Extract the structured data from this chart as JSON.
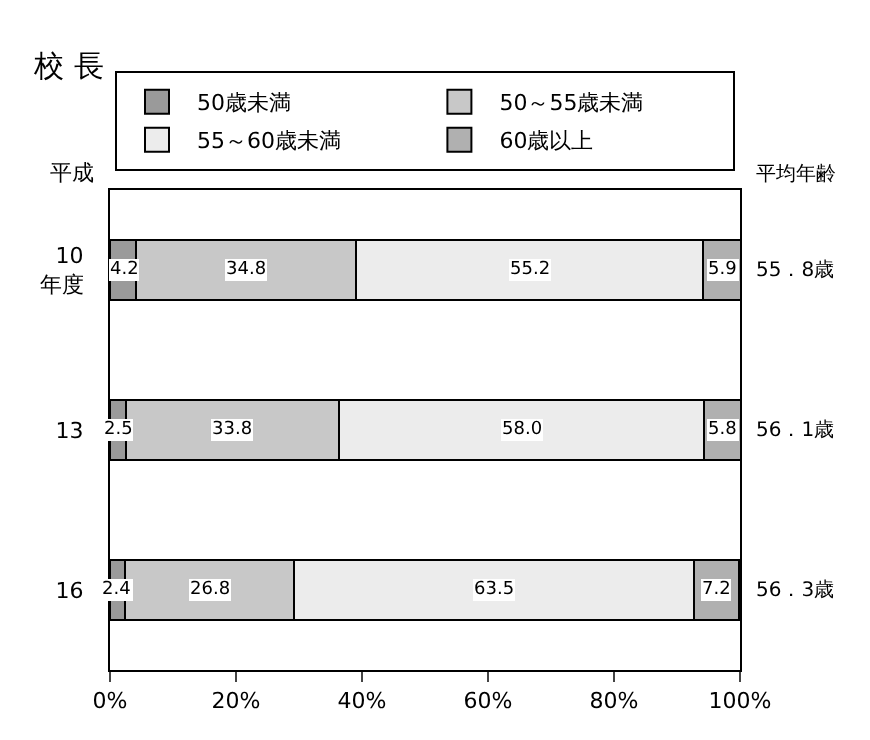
{
  "chart_data": {
    "type": "bar",
    "orientation": "horizontal",
    "stacked": true,
    "title": "校 長",
    "ylabel": "平成",
    "categories": [
      "10\n年度",
      "13",
      "16"
    ],
    "series": [
      {
        "name": "50歳未満",
        "color": "#9a9a9a",
        "values": [
          4.2,
          2.5,
          2.4
        ],
        "value_labels": [
          "4.2",
          "2.5",
          "2.4"
        ]
      },
      {
        "name": "50～55歳未満",
        "color": "#c8c8c8",
        "values": [
          34.8,
          33.8,
          26.8
        ],
        "value_labels": [
          "34.8",
          "33.8",
          "26.8"
        ]
      },
      {
        "name": "55～60歳未満",
        "color": "#ececec",
        "values": [
          55.2,
          58.0,
          63.5
        ],
        "value_labels": [
          "55.2",
          "58.0",
          "63.5"
        ]
      },
      {
        "name": "60歳以上",
        "color": "#b0b0b0",
        "values": [
          5.9,
          5.8,
          7.2
        ],
        "value_labels": [
          "5.9",
          "5.8",
          "7.2"
        ]
      }
    ],
    "xlim": [
      0,
      100
    ],
    "xticks": [
      {
        "value": 0,
        "label": "0%"
      },
      {
        "value": 20,
        "label": "20%"
      },
      {
        "value": 40,
        "label": "40%"
      },
      {
        "value": 60,
        "label": "60%"
      },
      {
        "value": 80,
        "label": "80%"
      },
      {
        "value": 100,
        "label": "100%"
      }
    ],
    "legend": "top",
    "grid": false,
    "annotations": [
      "平均年齢",
      "55．8歳",
      "56．1歳",
      "56．3歳"
    ]
  }
}
